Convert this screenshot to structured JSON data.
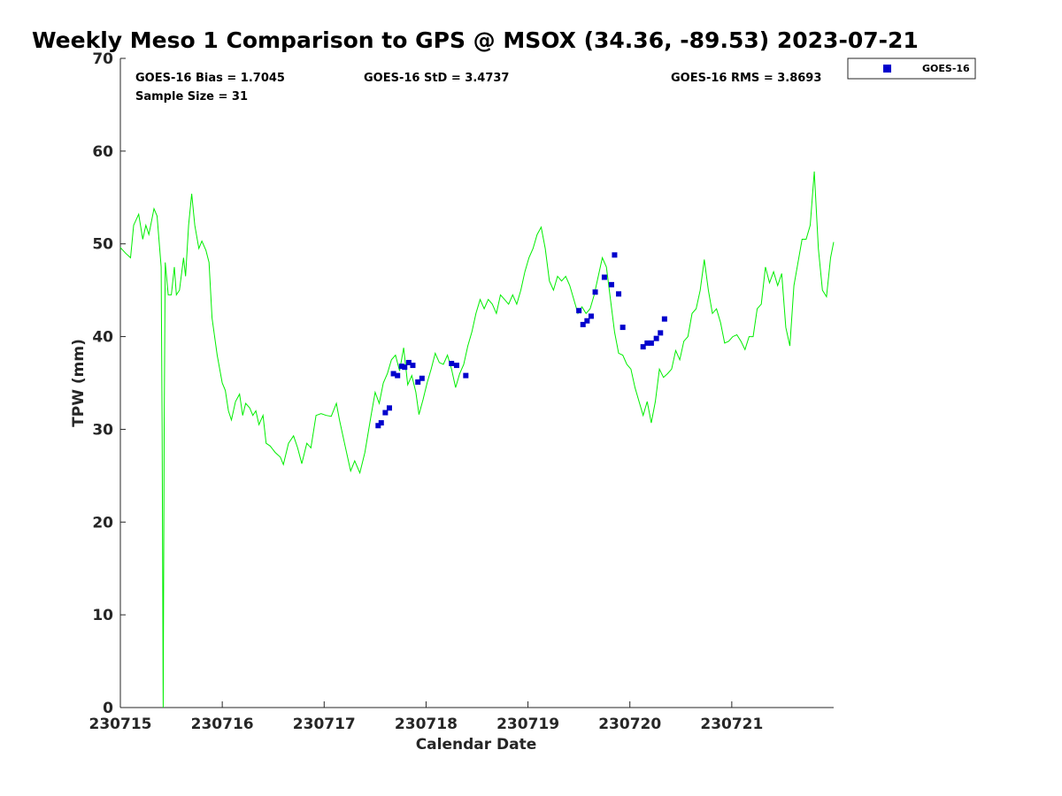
{
  "chart_data": {
    "type": "line",
    "title": "Weekly Meso 1 Comparison to GPS @ MSOX (34.36, -89.53) 2023-07-21",
    "xlabel": "Calendar Date",
    "ylabel": "TPW (mm)",
    "xlim": [
      0,
      7
    ],
    "ylim": [
      0,
      70
    ],
    "x_ticks": [
      {
        "value": 0,
        "label": "230715"
      },
      {
        "value": 1,
        "label": "230716"
      },
      {
        "value": 2,
        "label": "230717"
      },
      {
        "value": 3,
        "label": "230718"
      },
      {
        "value": 4,
        "label": "230719"
      },
      {
        "value": 5,
        "label": "230720"
      },
      {
        "value": 6,
        "label": "230721"
      }
    ],
    "y_ticks": [
      0,
      10,
      20,
      30,
      40,
      50,
      60,
      70
    ],
    "grid": false,
    "legend_position": "top-right",
    "stats": {
      "bias": "GOES-16 Bias = 1.7045",
      "std": "GOES-16 StD = 3.4737",
      "rms": "GOES-16 RMS = 3.8693",
      "sample": "Sample Size = 31"
    },
    "colors": {
      "gps_line": "#00ee00",
      "goes": "#0000cc",
      "axis": "#262626"
    },
    "series": [
      {
        "kind": "line",
        "points": [
          [
            0.0,
            49.6
          ],
          [
            0.05,
            49.0
          ],
          [
            0.1,
            48.5
          ],
          [
            0.13,
            52.0
          ],
          [
            0.18,
            53.2
          ],
          [
            0.22,
            50.5
          ],
          [
            0.25,
            52.0
          ],
          [
            0.28,
            51.0
          ],
          [
            0.33,
            53.8
          ],
          [
            0.36,
            53.0
          ],
          [
            0.4,
            47.5
          ],
          [
            0.41,
            30.0
          ],
          [
            0.42,
            0.0
          ],
          [
            0.43,
            30.0
          ],
          [
            0.44,
            48.0
          ],
          [
            0.47,
            44.5
          ],
          [
            0.5,
            44.5
          ],
          [
            0.53,
            47.5
          ],
          [
            0.55,
            44.5
          ],
          [
            0.58,
            45.0
          ],
          [
            0.62,
            48.5
          ],
          [
            0.64,
            46.5
          ],
          [
            0.67,
            52.0
          ],
          [
            0.7,
            55.4
          ],
          [
            0.73,
            52.0
          ],
          [
            0.77,
            49.5
          ],
          [
            0.8,
            50.3
          ],
          [
            0.84,
            49.3
          ],
          [
            0.87,
            48.0
          ],
          [
            0.9,
            42.0
          ],
          [
            0.95,
            38.0
          ],
          [
            1.0,
            35.0
          ],
          [
            1.03,
            34.2
          ],
          [
            1.06,
            32.0
          ],
          [
            1.09,
            31.0
          ],
          [
            1.13,
            33.0
          ],
          [
            1.17,
            33.8
          ],
          [
            1.2,
            31.5
          ],
          [
            1.23,
            32.8
          ],
          [
            1.27,
            32.3
          ],
          [
            1.3,
            31.5
          ],
          [
            1.33,
            32.0
          ],
          [
            1.36,
            30.5
          ],
          [
            1.4,
            31.5
          ],
          [
            1.43,
            28.5
          ],
          [
            1.47,
            28.2
          ],
          [
            1.52,
            27.5
          ],
          [
            1.57,
            27.0
          ],
          [
            1.6,
            26.2
          ],
          [
            1.65,
            28.5
          ],
          [
            1.7,
            29.3
          ],
          [
            1.74,
            28.0
          ],
          [
            1.78,
            26.3
          ],
          [
            1.83,
            28.5
          ],
          [
            1.87,
            28.0
          ],
          [
            1.92,
            31.5
          ],
          [
            1.97,
            31.7
          ],
          [
            2.02,
            31.5
          ],
          [
            2.07,
            31.4
          ],
          [
            2.12,
            32.8
          ],
          [
            2.15,
            31.0
          ],
          [
            2.2,
            28.5
          ],
          [
            2.26,
            25.5
          ],
          [
            2.3,
            26.6
          ],
          [
            2.35,
            25.3
          ],
          [
            2.4,
            27.5
          ],
          [
            2.46,
            31.5
          ],
          [
            2.5,
            34.0
          ],
          [
            2.54,
            32.8
          ],
          [
            2.58,
            35.0
          ],
          [
            2.62,
            36.0
          ],
          [
            2.66,
            37.5
          ],
          [
            2.7,
            38.0
          ],
          [
            2.74,
            36.3
          ],
          [
            2.78,
            38.8
          ],
          [
            2.82,
            34.8
          ],
          [
            2.86,
            35.8
          ],
          [
            2.9,
            34.0
          ],
          [
            2.93,
            31.6
          ],
          [
            2.97,
            33.2
          ],
          [
            3.01,
            35.0
          ],
          [
            3.05,
            36.5
          ],
          [
            3.09,
            38.2
          ],
          [
            3.13,
            37.2
          ],
          [
            3.17,
            37.0
          ],
          [
            3.21,
            38.0
          ],
          [
            3.25,
            36.5
          ],
          [
            3.29,
            34.5
          ],
          [
            3.33,
            36.0
          ],
          [
            3.37,
            37.0
          ],
          [
            3.41,
            39.0
          ],
          [
            3.45,
            40.5
          ],
          [
            3.49,
            42.5
          ],
          [
            3.53,
            44.0
          ],
          [
            3.57,
            43.0
          ],
          [
            3.61,
            44.0
          ],
          [
            3.65,
            43.5
          ],
          [
            3.69,
            42.5
          ],
          [
            3.73,
            44.5
          ],
          [
            3.77,
            44.0
          ],
          [
            3.81,
            43.5
          ],
          [
            3.85,
            44.5
          ],
          [
            3.89,
            43.5
          ],
          [
            3.93,
            45.0
          ],
          [
            3.97,
            47.0
          ],
          [
            4.01,
            48.5
          ],
          [
            4.05,
            49.5
          ],
          [
            4.09,
            51.0
          ],
          [
            4.13,
            51.8
          ],
          [
            4.17,
            49.5
          ],
          [
            4.21,
            46.0
          ],
          [
            4.25,
            45.0
          ],
          [
            4.29,
            46.5
          ],
          [
            4.33,
            46.0
          ],
          [
            4.37,
            46.5
          ],
          [
            4.41,
            45.5
          ],
          [
            4.45,
            44.0
          ],
          [
            4.49,
            42.5
          ],
          [
            4.53,
            43.2
          ],
          [
            4.57,
            42.5
          ],
          [
            4.61,
            43.0
          ],
          [
            4.65,
            44.5
          ],
          [
            4.69,
            46.5
          ],
          [
            4.73,
            48.5
          ],
          [
            4.77,
            47.5
          ],
          [
            4.81,
            44.0
          ],
          [
            4.85,
            40.5
          ],
          [
            4.89,
            38.2
          ],
          [
            4.93,
            38.0
          ],
          [
            4.97,
            37.0
          ],
          [
            5.01,
            36.5
          ],
          [
            5.05,
            34.5
          ],
          [
            5.09,
            33.0
          ],
          [
            5.13,
            31.5
          ],
          [
            5.17,
            33.0
          ],
          [
            5.21,
            30.7
          ],
          [
            5.25,
            33.0
          ],
          [
            5.29,
            36.5
          ],
          [
            5.33,
            35.6
          ],
          [
            5.37,
            36.0
          ],
          [
            5.41,
            36.5
          ],
          [
            5.45,
            38.5
          ],
          [
            5.49,
            37.5
          ],
          [
            5.53,
            39.5
          ],
          [
            5.57,
            40.0
          ],
          [
            5.61,
            42.5
          ],
          [
            5.65,
            43.0
          ],
          [
            5.69,
            45.0
          ],
          [
            5.73,
            48.3
          ],
          [
            5.77,
            45.0
          ],
          [
            5.81,
            42.5
          ],
          [
            5.85,
            43.0
          ],
          [
            5.89,
            41.5
          ],
          [
            5.93,
            39.3
          ],
          [
            5.97,
            39.5
          ],
          [
            6.01,
            40.0
          ],
          [
            6.05,
            40.2
          ],
          [
            6.09,
            39.5
          ],
          [
            6.13,
            38.6
          ],
          [
            6.17,
            40.0
          ],
          [
            6.21,
            40.0
          ],
          [
            6.25,
            43.0
          ],
          [
            6.29,
            43.5
          ],
          [
            6.33,
            47.5
          ],
          [
            6.37,
            45.8
          ],
          [
            6.41,
            47.0
          ],
          [
            6.45,
            45.5
          ],
          [
            6.49,
            46.8
          ],
          [
            6.53,
            41.0
          ],
          [
            6.57,
            39.0
          ],
          [
            6.61,
            45.5
          ],
          [
            6.65,
            48.0
          ],
          [
            6.69,
            50.5
          ],
          [
            6.73,
            50.5
          ],
          [
            6.77,
            52.0
          ],
          [
            6.81,
            57.8
          ],
          [
            6.85,
            49.5
          ],
          [
            6.89,
            45.0
          ],
          [
            6.93,
            44.3
          ],
          [
            6.97,
            48.5
          ],
          [
            7.0,
            50.2
          ]
        ]
      },
      {
        "name": "GOES-16",
        "kind": "scatter",
        "points": [
          [
            2.53,
            30.4
          ],
          [
            2.56,
            30.7
          ],
          [
            2.6,
            31.8
          ],
          [
            2.64,
            32.3
          ],
          [
            2.68,
            36.0
          ],
          [
            2.72,
            35.8
          ],
          [
            2.76,
            36.8
          ],
          [
            2.79,
            36.7
          ],
          [
            2.83,
            37.2
          ],
          [
            2.87,
            36.9
          ],
          [
            2.92,
            35.1
          ],
          [
            2.96,
            35.5
          ],
          [
            3.25,
            37.1
          ],
          [
            3.3,
            36.9
          ],
          [
            3.39,
            35.8
          ],
          [
            4.5,
            42.8
          ],
          [
            4.54,
            41.3
          ],
          [
            4.58,
            41.7
          ],
          [
            4.62,
            42.2
          ],
          [
            4.66,
            44.8
          ],
          [
            4.75,
            46.4
          ],
          [
            4.82,
            45.6
          ],
          [
            4.85,
            48.8
          ],
          [
            4.89,
            44.6
          ],
          [
            4.93,
            41.0
          ],
          [
            5.13,
            38.9
          ],
          [
            5.17,
            39.3
          ],
          [
            5.21,
            39.3
          ],
          [
            5.26,
            39.8
          ],
          [
            5.3,
            40.4
          ],
          [
            5.34,
            41.9
          ]
        ]
      }
    ]
  }
}
